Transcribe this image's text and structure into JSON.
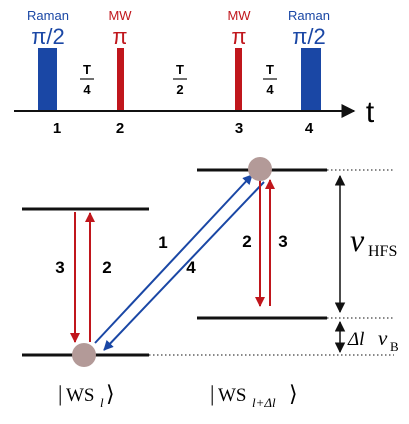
{
  "colors": {
    "raman": "#1a47a5",
    "mw": "#c0161c",
    "black": "#111111",
    "atom": "#b39a98"
  },
  "pulses": [
    {
      "type": "Raman",
      "angle": "π/2",
      "number": "1"
    },
    {
      "type": "MW",
      "angle": "π",
      "number": "2"
    },
    {
      "type": "MW",
      "angle": "π",
      "number": "3"
    },
    {
      "type": "Raman",
      "angle": "π/2",
      "number": "4"
    }
  ],
  "intervals": [
    {
      "num": "T",
      "den": "4"
    },
    {
      "num": "T",
      "den": "2"
    },
    {
      "num": "T",
      "den": "4"
    }
  ],
  "time_axis_label": "t",
  "transitions": {
    "left_down": "3",
    "left_up": "2",
    "diag_up": "1",
    "diag_down": "4",
    "right_down": "2",
    "right_up": "3"
  },
  "energy": {
    "hfs_symbol": "ν",
    "hfs_sub": "HFS",
    "shift_prefix": "Δl",
    "shift_symbol": "ν",
    "shift_sub": "B"
  },
  "states": {
    "left": {
      "ket": "WS",
      "sub": "l"
    },
    "right": {
      "ket": "WS",
      "sub": "l+Δl"
    }
  }
}
